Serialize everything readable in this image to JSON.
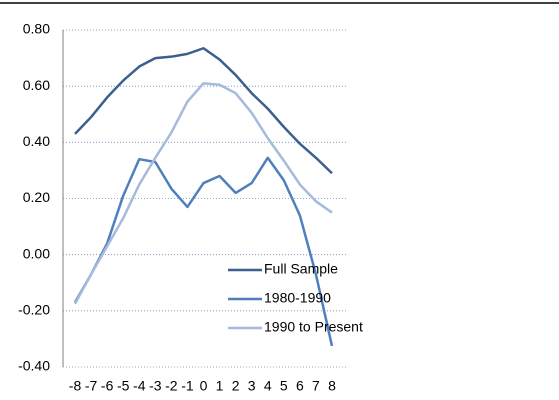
{
  "chart_data": {
    "type": "line",
    "x": [
      -8,
      -7,
      -6,
      -5,
      -4,
      -3,
      -2,
      -1,
      0,
      1,
      2,
      3,
      4,
      5,
      6,
      7,
      8
    ],
    "series": [
      {
        "name": "Full Sample",
        "color": "#3b5f8e",
        "values": [
          0.43,
          0.49,
          0.56,
          0.62,
          0.67,
          0.7,
          0.705,
          0.715,
          0.735,
          0.695,
          0.64,
          0.575,
          0.52,
          0.455,
          0.395,
          0.345,
          0.29
        ]
      },
      {
        "name": "1980-1990",
        "color": "#4f7fbd",
        "values": [
          -0.17,
          -0.07,
          0.04,
          0.21,
          0.34,
          0.33,
          0.235,
          0.17,
          0.255,
          0.28,
          0.22,
          0.255,
          0.345,
          0.265,
          0.14,
          -0.07,
          -0.325
        ]
      },
      {
        "name": "1990 to Present",
        "color": "#a7badb",
        "values": [
          -0.175,
          -0.07,
          0.03,
          0.13,
          0.25,
          0.345,
          0.435,
          0.545,
          0.61,
          0.605,
          0.575,
          0.505,
          0.415,
          0.335,
          0.25,
          0.19,
          0.15
        ]
      }
    ],
    "xlim": [
      -8.5,
      8.5
    ],
    "xticks": [
      -8,
      -7,
      -6,
      -5,
      -4,
      -3,
      -2,
      -1,
      0,
      1,
      2,
      3,
      4,
      5,
      6,
      7,
      8
    ],
    "ylim": [
      -0.4,
      0.8
    ],
    "yticks": [
      {
        "value": -0.4,
        "label": "-0.40"
      },
      {
        "value": -0.2,
        "label": "-0.20"
      },
      {
        "value": 0,
        "label": "0.00"
      },
      {
        "value": 0.2,
        "label": "0.20"
      },
      {
        "value": 0.4,
        "label": "0.40"
      },
      {
        "value": 0.6,
        "label": "0.60"
      },
      {
        "value": 0.8,
        "label": "0.80"
      }
    ],
    "grid": true
  }
}
